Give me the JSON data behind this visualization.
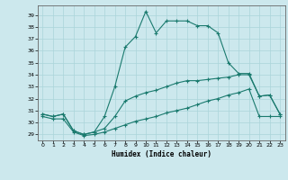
{
  "xlabel": "Humidex (Indice chaleur)",
  "background_color": "#cce8ed",
  "grid_color": "#aad4da",
  "line_color": "#1a7a6e",
  "xlim": [
    -0.5,
    23.5
  ],
  "ylim": [
    28.5,
    39.8
  ],
  "yticks": [
    29,
    30,
    31,
    32,
    33,
    34,
    35,
    36,
    37,
    38,
    39
  ],
  "xticks": [
    0,
    1,
    2,
    3,
    4,
    5,
    6,
    7,
    8,
    9,
    10,
    11,
    12,
    13,
    14,
    15,
    16,
    17,
    18,
    19,
    20,
    21,
    22,
    23
  ],
  "series_high_x": [
    0,
    1,
    2,
    3,
    4,
    5,
    6,
    7,
    8,
    9,
    10,
    11,
    12,
    13,
    14,
    15,
    16,
    17,
    18,
    19,
    20,
    21,
    22,
    23
  ],
  "series_high_y": [
    30.7,
    30.5,
    30.7,
    29.3,
    29.0,
    29.2,
    30.5,
    33.0,
    36.3,
    37.2,
    39.3,
    37.5,
    38.5,
    38.5,
    38.5,
    38.1,
    38.1,
    37.5,
    35.0,
    34.1,
    34.1,
    32.2,
    32.3,
    30.7
  ],
  "series_mid_x": [
    0,
    1,
    2,
    3,
    4,
    5,
    6,
    7,
    8,
    9,
    10,
    11,
    12,
    13,
    14,
    15,
    16,
    17,
    18,
    19,
    20,
    21,
    22,
    23
  ],
  "series_mid_y": [
    30.7,
    30.5,
    30.7,
    29.3,
    29.0,
    29.2,
    29.5,
    30.5,
    31.8,
    32.2,
    32.5,
    32.7,
    33.0,
    33.3,
    33.5,
    33.5,
    33.6,
    33.7,
    33.8,
    34.0,
    34.0,
    32.2,
    32.3,
    30.7
  ],
  "series_low_x": [
    0,
    1,
    2,
    3,
    4,
    5,
    6,
    7,
    8,
    9,
    10,
    11,
    12,
    13,
    14,
    15,
    16,
    17,
    18,
    19,
    20,
    21,
    22,
    23
  ],
  "series_low_y": [
    30.5,
    30.3,
    30.3,
    29.2,
    28.9,
    29.0,
    29.2,
    29.5,
    29.8,
    30.1,
    30.3,
    30.5,
    30.8,
    31.0,
    31.2,
    31.5,
    31.8,
    32.0,
    32.3,
    32.5,
    32.8,
    30.5,
    30.5,
    30.5
  ]
}
